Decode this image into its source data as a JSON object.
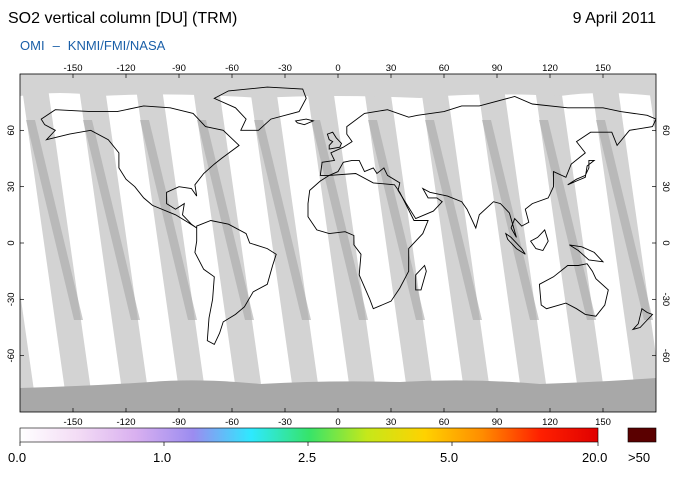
{
  "header": {
    "title": "SO2 vertical column [DU] (TRM)",
    "date": "9 April 2011",
    "source_left": "OMI",
    "source_dash": "–",
    "source_right": "KNMI/FMI/NASA"
  },
  "map": {
    "lon_ticks": [
      -150,
      -120,
      -90,
      -60,
      -30,
      0,
      30,
      60,
      90,
      120,
      150
    ],
    "lat_ticks": [
      60,
      30,
      0,
      -30,
      -60
    ],
    "colors": {
      "ocean": "#ffffff",
      "no_data": "#d3d3d3",
      "swath_overlap": "#a9a9a9",
      "coast": "#000000",
      "polar_cap": "#a8a8a8"
    }
  },
  "legend": {
    "labels": [
      "0.0",
      "1.0",
      "2.5",
      "5.0",
      "20.0"
    ],
    "overflow_label": ">50",
    "overflow_color": "#5a0000",
    "gradient_colors": [
      "#ffffff",
      "#f3dcf5",
      "#d9b0f0",
      "#9b8cf0",
      "#2ee9ff",
      "#36e46a",
      "#c5e81a",
      "#ffd200",
      "#ff8c00",
      "#ff2000",
      "#e00000"
    ]
  }
}
